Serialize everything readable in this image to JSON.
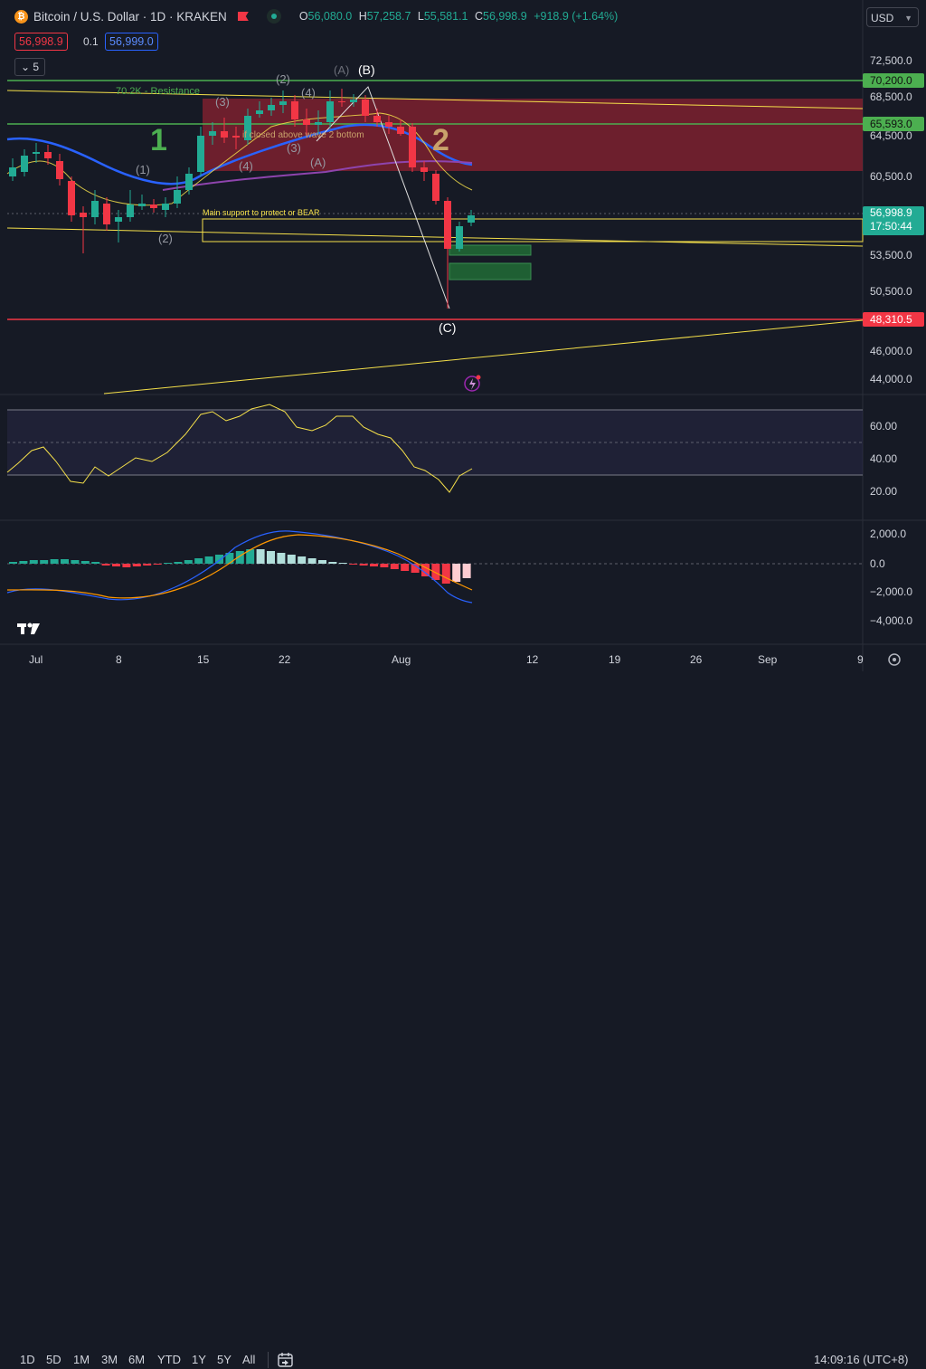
{
  "header": {
    "symbol": "Bitcoin / U.S. Dollar · 1D · KRAKEN",
    "ohlc": {
      "o_label": "O",
      "o": "56,080.0",
      "h_label": "H",
      "h": "57,258.7",
      "l_label": "L",
      "l": "55,581.1",
      "c_label": "C",
      "c": "56,998.9",
      "change": "+918.9 (+1.64%)"
    },
    "sell_price": "56,998.9",
    "spread": "0.1",
    "buy_price": "56,999.0",
    "indicators_count": "5",
    "currency": "USD"
  },
  "price_axis": {
    "ticks": [
      "72,500.0",
      "68,500.0",
      "64,500.0",
      "60,500.0",
      "53,500.0",
      "50,500.0",
      "46,000.0",
      "44,000.0"
    ],
    "labels": {
      "resistance_1": "70,200.0",
      "resistance_2": "65,593.0",
      "current": "56,998.9",
      "countdown": "17:50:44",
      "support": "48,310.5"
    }
  },
  "annotations": {
    "resistance_text": "70.2K - Resistance",
    "wave_1": "1",
    "wave_2": "2",
    "closed_above": "if closed above wave 2 bottom",
    "main_support": "Main support to protect or BEAR",
    "w_sub1": "(1)",
    "w_sub2": "(2)",
    "w_sub3": "(3)",
    "w_sub4": "(4)",
    "w_a": "(A)",
    "w_b": "(B)",
    "w_c": "(C)",
    "w_2b": "(2)",
    "w_3b": "(3)",
    "w_4b": "(4)",
    "w_ab": "(A)"
  },
  "rsi_axis": [
    "60.00",
    "40.00",
    "20.00"
  ],
  "macd_axis": [
    "2,000.0",
    "0.0",
    "−2,000.0",
    "−4,000.0"
  ],
  "time_axis": [
    "Jul",
    "8",
    "15",
    "22",
    "Aug",
    "12",
    "19",
    "26",
    "Sep",
    "9"
  ],
  "bottom": {
    "timeframes": [
      "1D",
      "5D",
      "1M",
      "3M",
      "6M",
      "YTD",
      "1Y",
      "5Y",
      "All"
    ],
    "clock": "14:09:16 (UTC+8)"
  },
  "colors": {
    "up": "#22ab94",
    "down": "#f23645",
    "accent": "#2962ff",
    "resistance_line": "#4caf50",
    "support_line": "#f23645",
    "trend": "#f5e04a"
  }
}
